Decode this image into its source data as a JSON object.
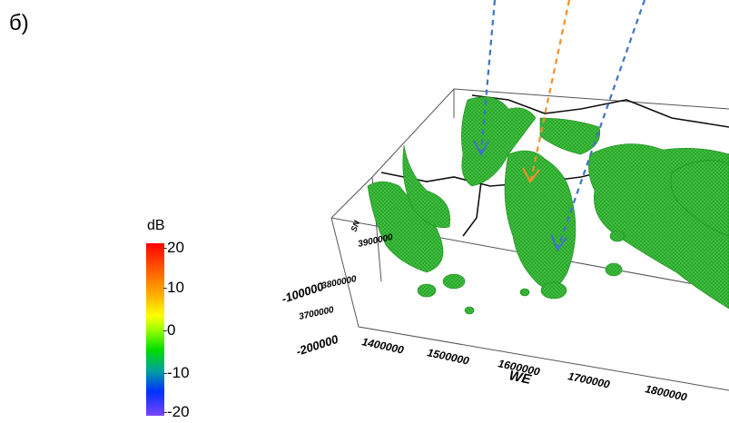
{
  "panel_label": "б)",
  "colorbar": {
    "title": "dB",
    "ticks": [
      "20",
      "10",
      "0",
      "-10",
      "-20"
    ],
    "colors": [
      "#ff0000",
      "#ff6a00",
      "#ffff00",
      "#00dd00",
      "#0030ff",
      "#7a44ff"
    ]
  },
  "axes": {
    "x_label": "WE",
    "x_ticks": [
      "1400000",
      "1500000",
      "1600000",
      "1700000",
      "1800000"
    ],
    "y_label": "SN",
    "y_ticks": [
      "3900000",
      "3800000",
      "3700000"
    ],
    "y2_ticks": [
      "-100000",
      "-200000"
    ]
  },
  "isosurface_color": "#2fbf2f",
  "arrow_colors": {
    "blue": "#3f74c4",
    "orange": "#f0902a"
  }
}
